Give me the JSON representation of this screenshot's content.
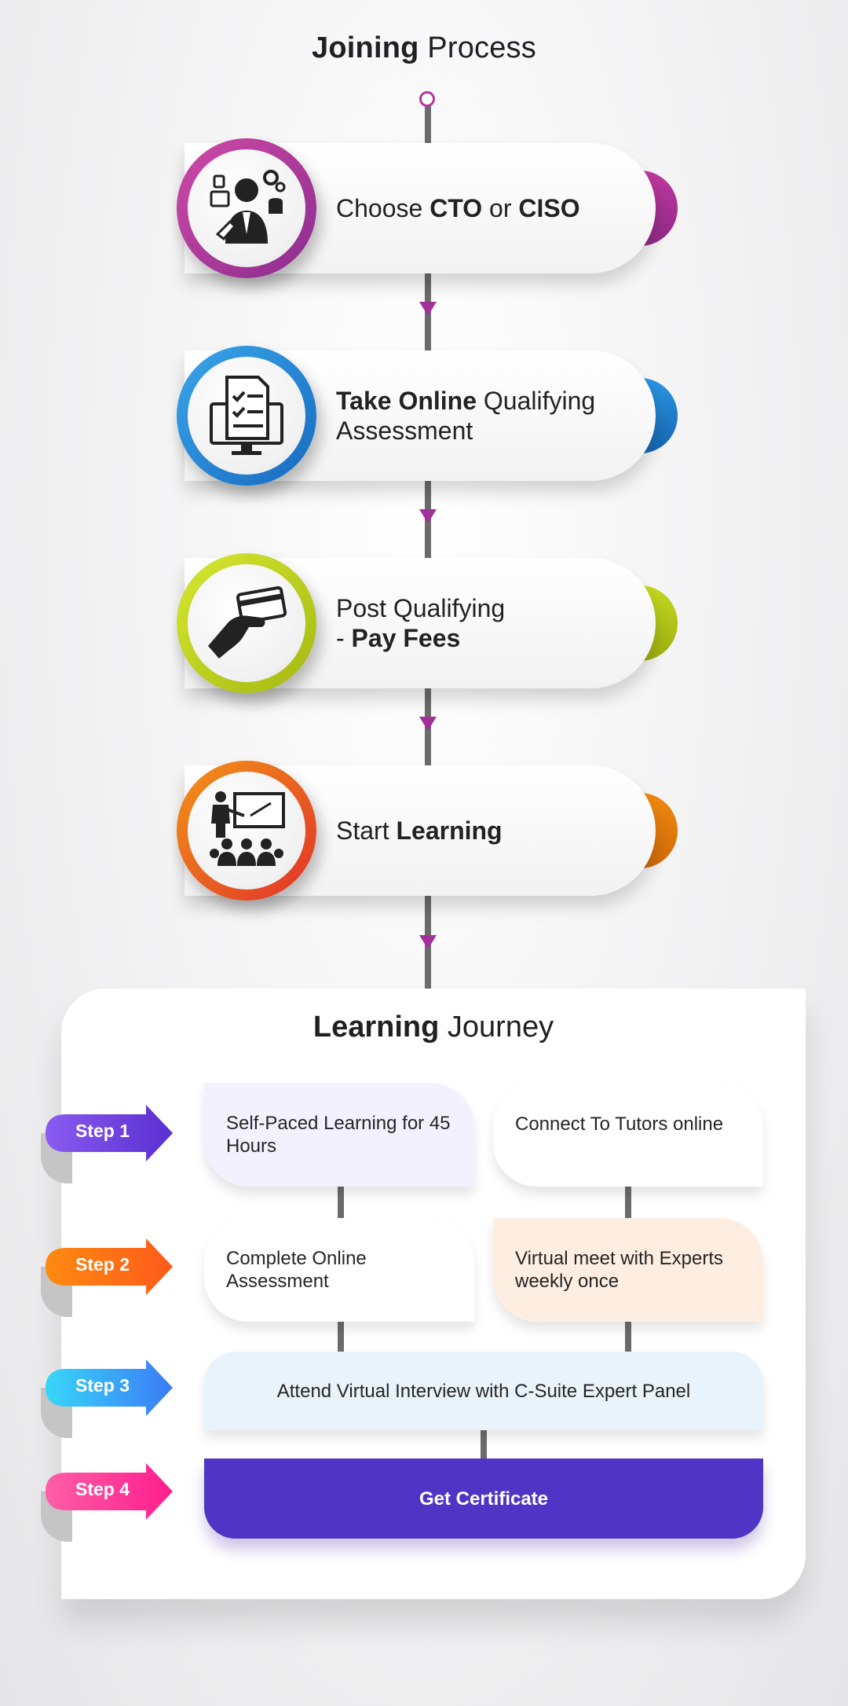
{
  "joining": {
    "title_bold": "Joining",
    "title_rest": " Process",
    "steps": [
      {
        "icon": "executive-tech-icon",
        "color": "#b0359e",
        "line1_pre": "Choose ",
        "line1_b1": "CTO",
        "line1_mid": " or ",
        "line1_b2": "CISO",
        "line2_pre": "",
        "line2_b": ""
      },
      {
        "icon": "online-assessment-icon",
        "color": "#1e8ad6",
        "line1_pre": "",
        "line1_b1": "Take Online",
        "line1_mid": " Qualifying",
        "line1_b2": "",
        "line2_pre": "Assessment",
        "line2_b": ""
      },
      {
        "icon": "card-payment-icon",
        "color": "#b7cc1a",
        "line1_pre": "Post Qualifying",
        "line1_b1": "",
        "line1_mid": "",
        "line1_b2": "",
        "line2_pre": "- ",
        "line2_b": "Pay Fees"
      },
      {
        "icon": "classroom-teaching-icon",
        "color": "#e8591f",
        "line1_pre": "Start ",
        "line1_b1": "Learning",
        "line1_mid": "",
        "line1_b2": "",
        "line2_pre": "",
        "line2_b": ""
      }
    ]
  },
  "journey": {
    "title_bold": "Learning",
    "title_rest": " Journey",
    "steps": [
      {
        "label": "Step 1",
        "color1": "#8a5bf0",
        "color2": "#5a2fd0"
      },
      {
        "label": "Step 2",
        "color1": "#ff8a10",
        "color2": "#ff5a1a"
      },
      {
        "label": "Step 3",
        "color1": "#38d6f8",
        "color2": "#3a7cf5"
      },
      {
        "label": "Step 4",
        "color1": "#ff5fa8",
        "color2": "#ff1d8d"
      }
    ],
    "boxes": {
      "self_paced": "Self-Paced Learning for 45 Hours",
      "tutors": "Connect To Tutors online",
      "complete_assessment": "Complete Online Assessment",
      "virtual_meet": "Virtual meet with Experts weekly once",
      "interview": "Attend Virtual Interview with C-Suite Expert Panel",
      "certificate": "Get Certificate"
    }
  }
}
